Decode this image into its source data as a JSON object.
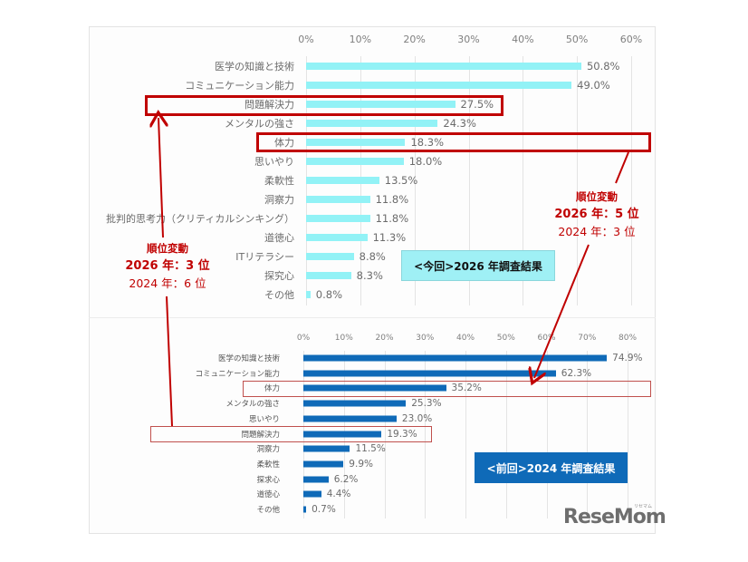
{
  "chart_data": [
    {
      "type": "bar",
      "orientation": "horizontal",
      "title": "<今回>2026 年調査結果",
      "categories": [
        "医学の知識と技術",
        "コミュニケーション能力",
        "問題解決力",
        "メンタルの強さ",
        "体力",
        "思いやり",
        "柔軟性",
        "洞察力",
        "批判的思考力（クリティカルシンキング）",
        "道徳心",
        "ITリテラシー",
        "探究心",
        "その他"
      ],
      "values": [
        50.8,
        49.0,
        27.5,
        24.3,
        18.3,
        18.0,
        13.5,
        11.8,
        11.8,
        11.3,
        8.8,
        8.3,
        0.8
      ],
      "value_labels": [
        "50.8%",
        "49.0%",
        "27.5%",
        "24.3%",
        "18.3%",
        "18.0%",
        "13.5%",
        "11.8%",
        "11.8%",
        "11.3%",
        "8.8%",
        "8.3%",
        "0.8%"
      ],
      "xticks": [
        "0%",
        "10%",
        "20%",
        "30%",
        "40%",
        "50%",
        "60%"
      ],
      "xlim": [
        0,
        60
      ],
      "xlabel": "",
      "ylabel": "",
      "grid": true,
      "bar_color": "#92f2f6",
      "highlighted": [
        "問題解決力",
        "体力"
      ]
    },
    {
      "type": "bar",
      "orientation": "horizontal",
      "title": "<前回>2024 年調査結果",
      "categories": [
        "医学の知識と技術",
        "コミュニケーション能力",
        "体力",
        "メンタルの強さ",
        "思いやり",
        "問題解決力",
        "洞察力",
        "柔軟性",
        "探求心",
        "道徳心",
        "その他"
      ],
      "values": [
        74.9,
        62.3,
        35.2,
        25.3,
        23.0,
        19.3,
        11.5,
        9.9,
        6.2,
        4.4,
        0.7
      ],
      "value_labels": [
        "74.9%",
        "62.3%",
        "35.2%",
        "25.3%",
        "23.0%",
        "19.3%",
        "11.5%",
        "9.9%",
        "6.2%",
        "4.4%",
        "0.7%"
      ],
      "xticks": [
        "0%",
        "10%",
        "20%",
        "30%",
        "40%",
        "50%",
        "60%",
        "70%",
        "80%"
      ],
      "xlim": [
        0,
        80
      ],
      "xlabel": "",
      "ylabel": "",
      "grid": true,
      "bar_color": "#0f6ab8",
      "highlighted": [
        "体力",
        "問題解決力"
      ]
    }
  ],
  "legend": {
    "current": "<今回>2026 年調査結果",
    "previous": "<前回>2024 年調査結果"
  },
  "annotations": {
    "left": {
      "title": "順位変動",
      "line1": "2026 年：3 位",
      "line2": "2024 年：6 位"
    },
    "right": {
      "title": "順位変動",
      "line1": "2026 年：5 位",
      "line2": "2024 年：3 位"
    }
  },
  "colors": {
    "highlight_red": "#c00000",
    "current_bar": "#92f2f6",
    "previous_bar": "#0f6ab8",
    "current_legend_bg": "#9ff0f5",
    "previous_legend_bg": "#0f6ab8"
  },
  "logo": {
    "text": "ReseMom",
    "sub": "リセマム"
  }
}
